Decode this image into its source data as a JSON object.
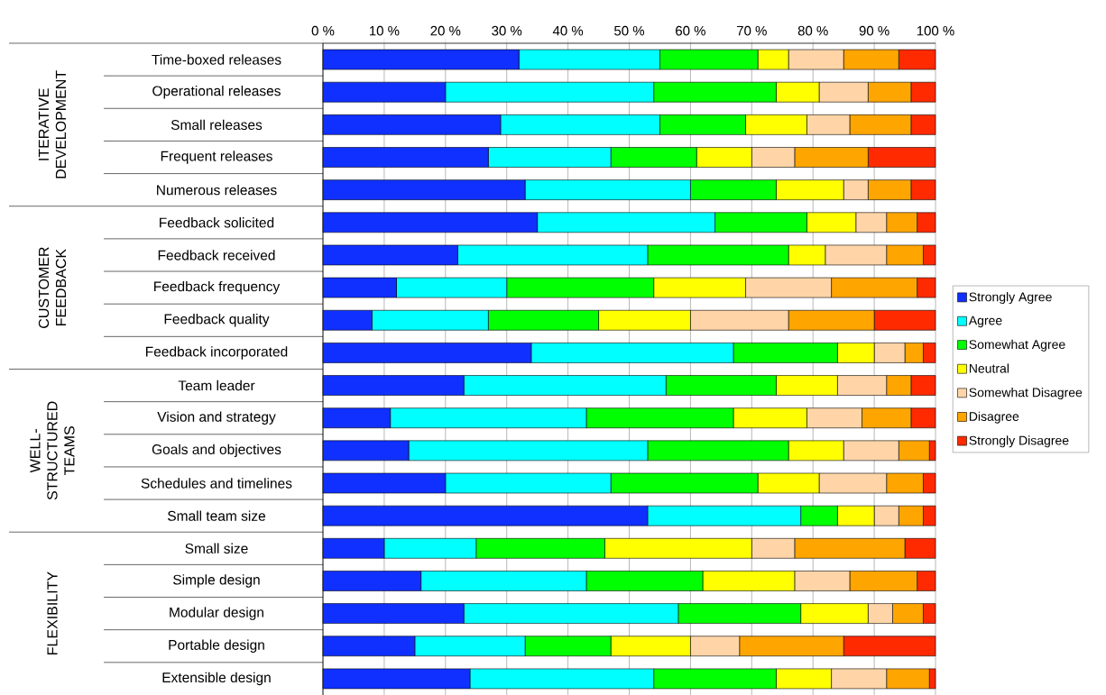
{
  "chart_data": {
    "type": "bar",
    "orientation": "horizontal",
    "stacked": true,
    "categories": [
      "Time-boxed releases",
      "Operational releases",
      "Small releases",
      "Frequent releases",
      "Numerous releases",
      "Feedback solicited",
      "Feedback received",
      "Feedback frequency",
      "Feedback quality",
      "Feedback incorporated",
      "Team leader",
      "Vision and strategy",
      "Goals and objectives",
      "Schedules and timelines",
      "Small team size",
      "Small size",
      "Simple design",
      "Modular design",
      "Portable design",
      "Extensible design"
    ],
    "series": [
      {
        "name": "Strongly Agree",
        "color": "#1030ff",
        "values": [
          32,
          20,
          29,
          27,
          33,
          35,
          22,
          12,
          8,
          34,
          23,
          11,
          14,
          20,
          53,
          10,
          16,
          23,
          15,
          24
        ]
      },
      {
        "name": "Agree",
        "color": "#00ffff",
        "values": [
          23,
          34,
          26,
          20,
          27,
          29,
          31,
          18,
          19,
          33,
          33,
          32,
          39,
          27,
          25,
          15,
          27,
          35,
          18,
          30
        ]
      },
      {
        "name": "Somewhat Agree",
        "color": "#00ff00",
        "values": [
          16,
          20,
          14,
          14,
          14,
          15,
          23,
          24,
          18,
          17,
          18,
          24,
          23,
          24,
          6,
          21,
          19,
          20,
          14,
          20
        ]
      },
      {
        "name": "Neutral",
        "color": "#ffff00",
        "values": [
          5,
          7,
          10,
          9,
          11,
          8,
          6,
          15,
          15,
          6,
          10,
          12,
          9,
          10,
          6,
          24,
          15,
          11,
          13,
          9
        ]
      },
      {
        "name": "Somewhat Disagree",
        "color": "#ffd5a8",
        "values": [
          9,
          8,
          7,
          7,
          4,
          5,
          10,
          14,
          16,
          5,
          8,
          9,
          9,
          11,
          4,
          7,
          9,
          4,
          8,
          9
        ]
      },
      {
        "name": "Disagree",
        "color": "#ffa500",
        "values": [
          9,
          7,
          10,
          12,
          7,
          5,
          6,
          14,
          14,
          3,
          4,
          8,
          5,
          6,
          4,
          18,
          11,
          5,
          17,
          7
        ]
      },
      {
        "name": "Strongly Disagree",
        "color": "#ff2a00",
        "values": [
          6,
          4,
          4,
          11,
          4,
          3,
          2,
          3,
          10,
          2,
          4,
          4,
          1,
          2,
          2,
          5,
          3,
          2,
          15,
          1
        ]
      }
    ],
    "xlim": [
      0,
      100
    ],
    "xticks": [
      {
        "value": 0,
        "label": "0 %"
      },
      {
        "value": 10,
        "label": "10 %"
      },
      {
        "value": 20,
        "label": "20 %"
      },
      {
        "value": 30,
        "label": "30 %"
      },
      {
        "value": 40,
        "label": "40 %"
      },
      {
        "value": 50,
        "label": "50 %"
      },
      {
        "value": 60,
        "label": "60 %"
      },
      {
        "value": 70,
        "label": "70 %"
      },
      {
        "value": 80,
        "label": "80 %"
      },
      {
        "value": 90,
        "label": "90 %"
      },
      {
        "value": 100,
        "label": "100 %"
      }
    ],
    "grid": "x",
    "legend": "right",
    "annotations": [
      "ITERATIVE DEVELOPMENT",
      "CUSTOMER FEEDBACK",
      "WELL-STRUCTURED TEAMS",
      "FLEXIBILITY"
    ]
  }
}
